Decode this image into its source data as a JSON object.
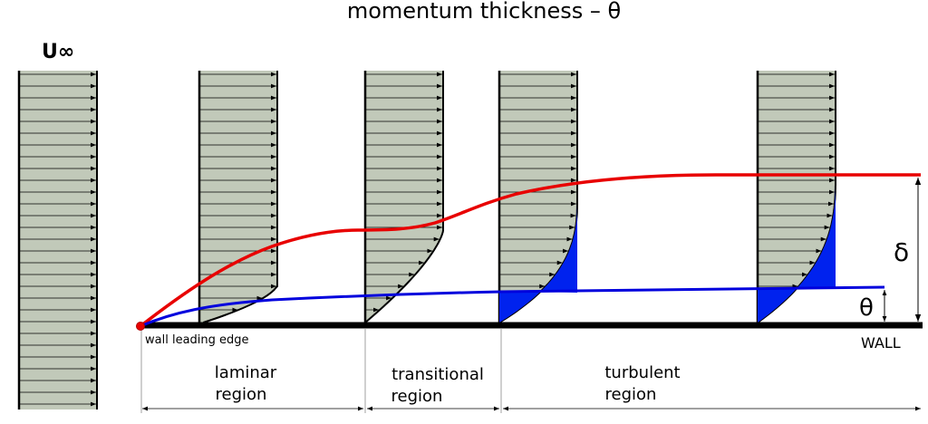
{
  "title": "momentum thickness – θ",
  "freestream_label": "U∞",
  "labels": {
    "leading_edge": "wall leading edge",
    "wall": "WALL",
    "delta": "δ",
    "theta": "θ"
  },
  "regions": [
    {
      "line1": "laminar",
      "line2": "region"
    },
    {
      "line1": "transitional",
      "line2": "region"
    },
    {
      "line1": "turbulent",
      "line2": "region"
    }
  ],
  "colors": {
    "profile_fill": "#c1c9b9",
    "boundary_layer_thickness": "#e80000",
    "momentum_thickness": "#0000dd",
    "deficit_fill": "#0022ee",
    "wall": "#000000"
  }
}
